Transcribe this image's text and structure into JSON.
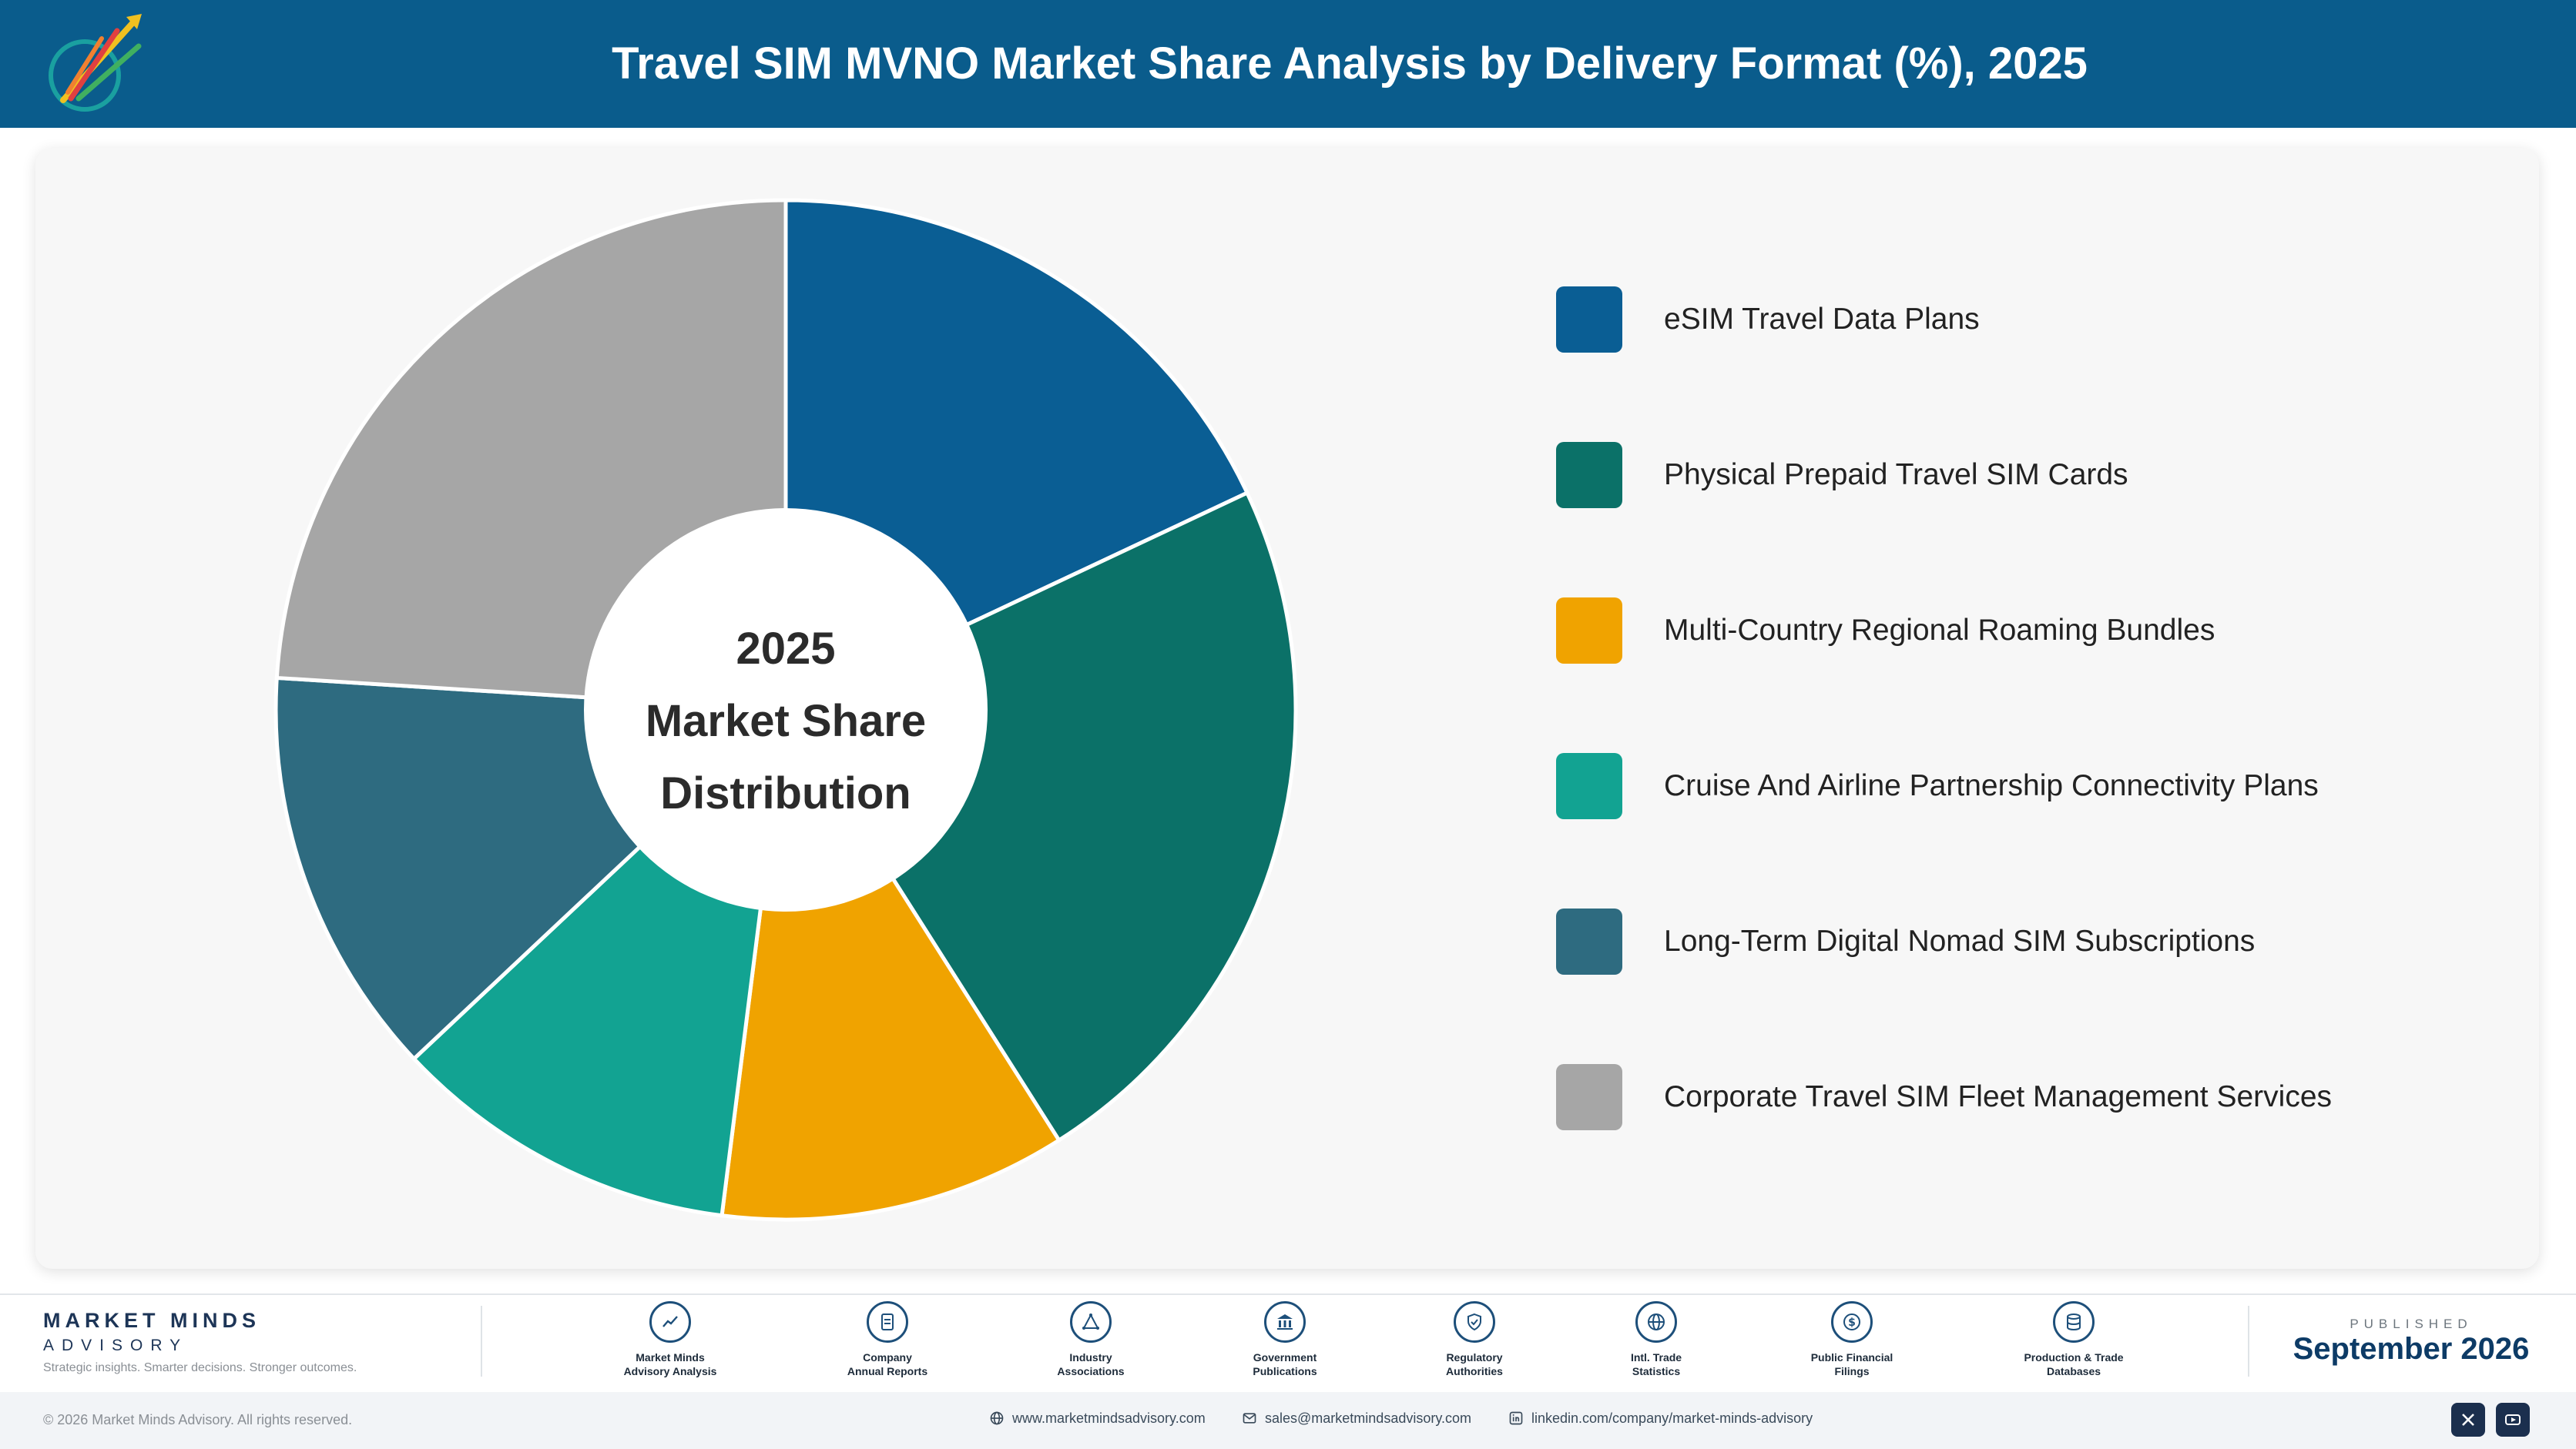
{
  "header": {
    "title": "Travel SIM MVNO Market Share Analysis by Delivery Format (%), 2025",
    "logo_icon": "market-minds-logo"
  },
  "chart_data": {
    "type": "pie",
    "title": "Travel SIM MVNO Market Share Analysis by Delivery Format (%), 2025",
    "center_label": [
      "2025",
      "Market Share",
      "Distribution"
    ],
    "legend_position": "right",
    "categories": [
      "eSIM Travel Data Plans",
      "Physical Prepaid Travel SIM Cards",
      "Multi-Country Regional Roaming Bundles",
      "Cruise And Airline Partnership Connectivity Plans",
      "Long-Term Digital Nomad SIM Subscriptions",
      "Corporate Travel SIM Fleet Management Services"
    ],
    "values": [
      18,
      23,
      11,
      11,
      13,
      24
    ],
    "colors": [
      "#0a5e94",
      "#0b7168",
      "#f0a300",
      "#12a392",
      "#2e6b80",
      "#a6a6a6"
    ]
  },
  "footer": {
    "brand_name": "MARKET MINDS",
    "brand_sub": "ADVISORY",
    "brand_tagline": "Strategic insights. Smarter decisions. Stronger outcomes.",
    "sources": [
      {
        "line1": "Market Minds",
        "line2": "Advisory Analysis",
        "icon": "trend-chart-icon"
      },
      {
        "line1": "Company",
        "line2": "Annual Reports",
        "icon": "document-icon"
      },
      {
        "line1": "Industry",
        "line2": "Associations",
        "icon": "network-icon"
      },
      {
        "line1": "Government",
        "line2": "Publications",
        "icon": "government-building-icon"
      },
      {
        "line1": "Regulatory",
        "line2": "Authorities",
        "icon": "shield-icon"
      },
      {
        "line1": "Intl. Trade",
        "line2": "Statistics",
        "icon": "globe-icon"
      },
      {
        "line1": "Public Financial",
        "line2": "Filings",
        "icon": "dollar-coin-icon"
      },
      {
        "line1": "Production & Trade",
        "line2": "Databases",
        "icon": "database-icon"
      }
    ],
    "published_label": "PUBLISHED",
    "published_date": "September 2026",
    "copyright": "© 2026 Market Minds Advisory. All rights reserved.",
    "website": "www.marketmindsadvisory.com",
    "email": "sales@marketmindsadvisory.com",
    "linkedin": "linkedin.com/company/market-minds-advisory"
  }
}
